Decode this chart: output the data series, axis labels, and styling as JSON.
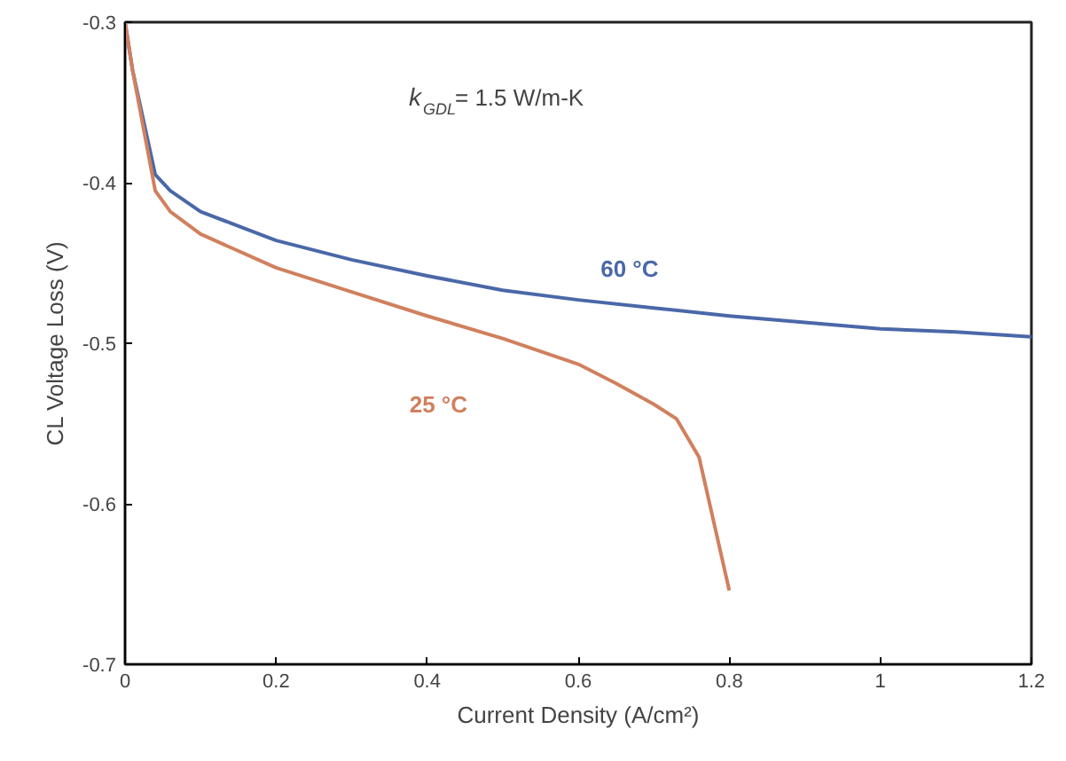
{
  "chart_data": {
    "type": "line",
    "xlabel": "Current Density (A/cm²)",
    "ylabel": "CL Voltage Loss (V)",
    "xlim": [
      0,
      1.2
    ],
    "ylim": [
      -0.7,
      -0.3
    ],
    "xticks": [
      0,
      0.2,
      0.4,
      0.6,
      0.8,
      1,
      1.2
    ],
    "yticks": [
      -0.7,
      -0.6,
      -0.5,
      -0.4,
      -0.3
    ],
    "grid": false,
    "series": [
      {
        "name": "60 °C",
        "color": "#4a68a8",
        "x": [
          0,
          0.01,
          0.04,
          0.06,
          0.1,
          0.2,
          0.3,
          0.4,
          0.5,
          0.6,
          0.7,
          0.8,
          0.9,
          1.0,
          1.1,
          1.2
        ],
        "values": [
          -0.3,
          -0.33,
          -0.395,
          -0.405,
          -0.418,
          -0.436,
          -0.448,
          -0.458,
          -0.467,
          -0.473,
          -0.478,
          -0.483,
          -0.487,
          -0.491,
          -0.493,
          -0.496
        ]
      },
      {
        "name": "25 °C",
        "color": "#d0805e",
        "x": [
          0,
          0.01,
          0.04,
          0.06,
          0.1,
          0.2,
          0.3,
          0.4,
          0.5,
          0.6,
          0.65,
          0.7,
          0.73,
          0.76,
          0.8
        ],
        "values": [
          -0.3,
          -0.33,
          -0.405,
          -0.418,
          -0.432,
          -0.453,
          -0.468,
          -0.483,
          -0.497,
          -0.513,
          -0.525,
          -0.538,
          -0.547,
          -0.571,
          -0.654
        ]
      }
    ],
    "annotations": [
      "k$_{GDL}$= 1.5 W/m-K"
    ]
  }
}
